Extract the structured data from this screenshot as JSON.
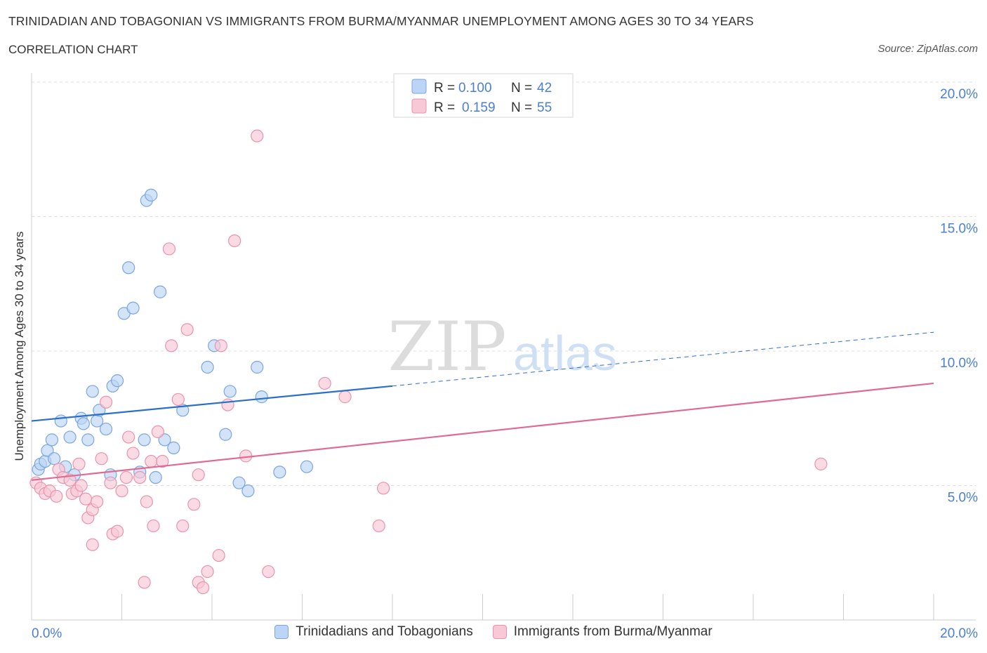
{
  "header": {
    "title": "TRINIDADIAN AND TOBAGONIAN VS IMMIGRANTS FROM BURMA/MYANMAR UNEMPLOYMENT AMONG AGES 30 TO 34 YEARS",
    "subtitle": "CORRELATION CHART",
    "source": "Source: ZipAtlas.com"
  },
  "watermark": {
    "zip": "ZIP",
    "atlas": "atlas"
  },
  "colors": {
    "blue_fill": "#bcd4f5",
    "blue_stroke": "#7aa6e0",
    "blue_line": "#2a6fcb",
    "pink_fill": "#f8c8d6",
    "pink_stroke": "#e894ae",
    "pink_line": "#e06a94",
    "axis_text": "#4a7fd4",
    "grid": "#dddddd"
  },
  "legend": {
    "rows": [
      {
        "r_label": "R =",
        "r_value": "0.100",
        "n_label": "N =",
        "n_value": "42"
      },
      {
        "r_label": "R =",
        "r_value": "0.159",
        "n_label": "N =",
        "n_value": "55"
      }
    ]
  },
  "chart_data": {
    "type": "scatter",
    "title": "TRINIDADIAN AND TOBAGONIAN VS IMMIGRANTS FROM BURMA/MYANMAR UNEMPLOYMENT AMONG AGES 30 TO 34 YEARS",
    "subtitle": "CORRELATION CHART",
    "ylabel": "Unemployment Among Ages 30 to 34 years",
    "xlabel": "",
    "xlim": [
      0,
      20
    ],
    "ylim": [
      0,
      20
    ],
    "x_tick_labels": [
      "0.0%",
      "20.0%"
    ],
    "y_tick_labels": [
      "5.0%",
      "10.0%",
      "15.0%",
      "20.0%"
    ],
    "y_ticks": [
      5,
      10,
      15,
      20
    ],
    "grid": true,
    "legend_position": "top-center",
    "series": [
      {
        "name": "Trinidadians and Tobagonians",
        "r": 0.1,
        "n": 42,
        "trend": {
          "x": [
            0,
            8
          ],
          "y": [
            7.4,
            8.7
          ],
          "dashed_to_x": 20,
          "dashed_y": 10.7
        },
        "points": [
          [
            0.15,
            5.6
          ],
          [
            0.2,
            5.8
          ],
          [
            0.3,
            5.9
          ],
          [
            0.35,
            6.3
          ],
          [
            0.45,
            6.7
          ],
          [
            0.5,
            6.0
          ],
          [
            0.65,
            7.4
          ],
          [
            0.75,
            5.7
          ],
          [
            0.85,
            6.8
          ],
          [
            0.95,
            5.4
          ],
          [
            1.1,
            7.5
          ],
          [
            1.15,
            7.3
          ],
          [
            1.25,
            6.7
          ],
          [
            1.35,
            8.5
          ],
          [
            1.45,
            7.4
          ],
          [
            1.5,
            7.8
          ],
          [
            1.65,
            7.1
          ],
          [
            1.75,
            5.4
          ],
          [
            1.8,
            8.7
          ],
          [
            1.9,
            8.9
          ],
          [
            2.05,
            11.4
          ],
          [
            2.15,
            13.1
          ],
          [
            2.25,
            11.6
          ],
          [
            2.4,
            5.5
          ],
          [
            2.5,
            6.7
          ],
          [
            2.55,
            15.6
          ],
          [
            2.65,
            15.8
          ],
          [
            2.75,
            5.3
          ],
          [
            2.85,
            12.2
          ],
          [
            2.95,
            6.7
          ],
          [
            3.15,
            6.4
          ],
          [
            3.35,
            7.8
          ],
          [
            3.9,
            9.4
          ],
          [
            4.05,
            10.2
          ],
          [
            4.3,
            6.9
          ],
          [
            4.4,
            8.5
          ],
          [
            4.6,
            5.1
          ],
          [
            4.8,
            4.8
          ],
          [
            5.0,
            9.4
          ],
          [
            5.1,
            8.3
          ],
          [
            5.5,
            5.5
          ],
          [
            6.1,
            5.7
          ]
        ]
      },
      {
        "name": "Immigrants from Burma/Myanmar",
        "r": 0.159,
        "n": 55,
        "trend": {
          "x": [
            0,
            20
          ],
          "y": [
            5.2,
            8.8
          ]
        },
        "points": [
          [
            0.1,
            5.1
          ],
          [
            0.2,
            4.9
          ],
          [
            0.3,
            4.7
          ],
          [
            0.4,
            4.8
          ],
          [
            0.55,
            4.6
          ],
          [
            0.6,
            5.6
          ],
          [
            0.7,
            5.3
          ],
          [
            0.85,
            5.2
          ],
          [
            0.9,
            4.7
          ],
          [
            1.0,
            4.8
          ],
          [
            1.05,
            5.8
          ],
          [
            1.1,
            5.0
          ],
          [
            1.2,
            4.5
          ],
          [
            1.25,
            3.8
          ],
          [
            1.35,
            4.1
          ],
          [
            1.35,
            2.8
          ],
          [
            1.45,
            4.4
          ],
          [
            1.55,
            6.0
          ],
          [
            1.65,
            8.1
          ],
          [
            1.75,
            5.1
          ],
          [
            1.8,
            3.2
          ],
          [
            1.9,
            3.3
          ],
          [
            2.0,
            4.8
          ],
          [
            2.1,
            5.3
          ],
          [
            2.15,
            6.8
          ],
          [
            2.25,
            6.2
          ],
          [
            2.4,
            5.3
          ],
          [
            2.5,
            1.4
          ],
          [
            2.55,
            4.4
          ],
          [
            2.65,
            5.9
          ],
          [
            2.7,
            3.5
          ],
          [
            2.8,
            7.0
          ],
          [
            2.9,
            5.9
          ],
          [
            3.05,
            13.8
          ],
          [
            3.1,
            10.2
          ],
          [
            3.25,
            8.2
          ],
          [
            3.35,
            3.5
          ],
          [
            3.45,
            10.8
          ],
          [
            3.6,
            4.3
          ],
          [
            3.7,
            1.4
          ],
          [
            3.7,
            5.4
          ],
          [
            3.8,
            1.2
          ],
          [
            3.9,
            1.8
          ],
          [
            4.2,
            10.2
          ],
          [
            4.15,
            2.4
          ],
          [
            4.35,
            8.0
          ],
          [
            4.5,
            14.1
          ],
          [
            4.75,
            6.1
          ],
          [
            5.0,
            18.0
          ],
          [
            5.25,
            1.8
          ],
          [
            6.5,
            8.8
          ],
          [
            6.95,
            8.3
          ],
          [
            7.7,
            3.5
          ],
          [
            7.8,
            4.9
          ],
          [
            17.5,
            5.8
          ]
        ]
      }
    ]
  }
}
